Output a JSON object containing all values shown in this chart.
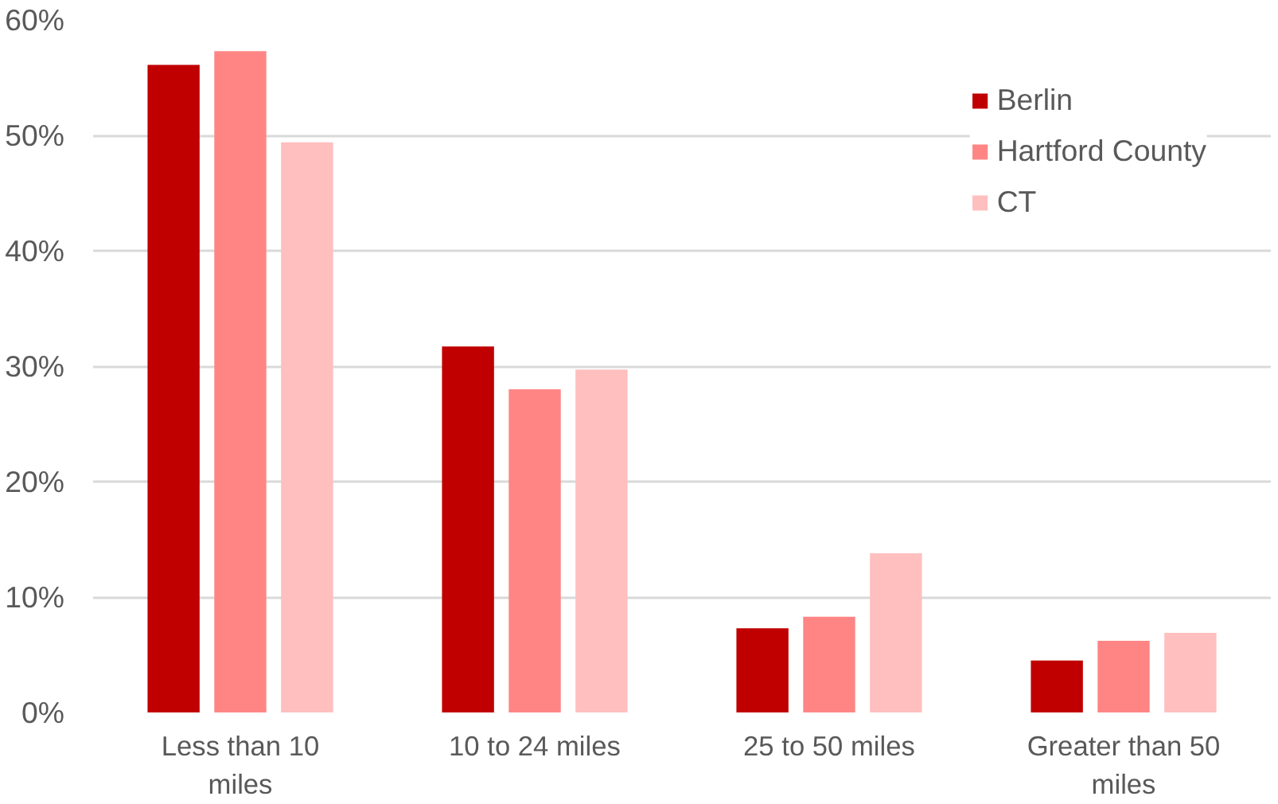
{
  "chart_data": {
    "type": "bar",
    "categories": [
      "Less than 10 miles",
      "10 to 24 miles",
      "25 to 50 miles",
      "Greater than 50 miles"
    ],
    "series": [
      {
        "name": "Berlin",
        "color": "#c00000",
        "values": [
          56.1,
          31.7,
          7.3,
          4.5
        ]
      },
      {
        "name": "Hartford County",
        "color": "#ff8585",
        "values": [
          57.3,
          28.0,
          8.3,
          6.2
        ]
      },
      {
        "name": "CT",
        "color": "#ffbfbf",
        "values": [
          49.4,
          29.7,
          13.8,
          6.9
        ]
      }
    ],
    "ylim": [
      0,
      60
    ],
    "yticks": [
      {
        "value": 0,
        "label": "0%"
      },
      {
        "value": 10,
        "label": "10%"
      },
      {
        "value": 20,
        "label": "20%"
      },
      {
        "value": 30,
        "label": "30%"
      },
      {
        "value": 40,
        "label": "40%"
      },
      {
        "value": 50,
        "label": "50%"
      },
      {
        "value": 60,
        "label": "60%"
      }
    ],
    "grid": "y",
    "legend": "top right"
  }
}
